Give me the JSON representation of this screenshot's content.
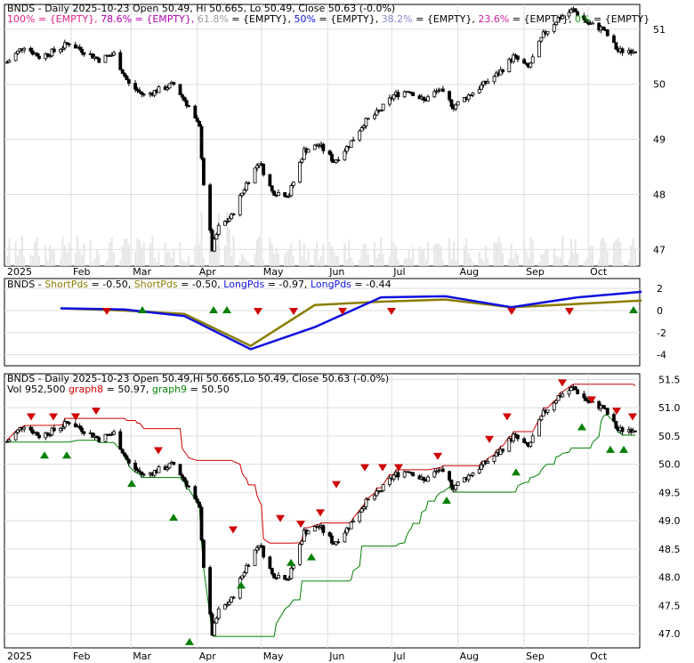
{
  "panel1": {
    "header_parts": [
      {
        "text": "BNDS - Daily 2025-10-23 Open 50.49, Hi 50.665, Lo 50.49, Close 50.63 (-0.0%)",
        "color": "#000000"
      }
    ],
    "fib_parts": [
      {
        "text": "100% = {EMPTY}, ",
        "color": "#e0218a"
      },
      {
        "text": "78.6% = {EMPTY}, ",
        "color": "#b000b0"
      },
      {
        "text": "61.8% ",
        "color": "#9a9a9a"
      },
      {
        "text": "= {EMPTY}, ",
        "color": "#000000"
      },
      {
        "text": "50% ",
        "color": "#1010e0"
      },
      {
        "text": "= {EMPTY}, ",
        "color": "#000000"
      },
      {
        "text": "38.2% ",
        "color": "#8888cc"
      },
      {
        "text": "= {EMPTY}, ",
        "color": "#000000"
      },
      {
        "text": "23.6% ",
        "color": "#d020a0"
      },
      {
        "text": "= {EMPTY}, ",
        "color": "#000000"
      },
      {
        "text": "0% ",
        "color": "#10a010"
      },
      {
        "text": "= {EMPTY}",
        "color": "#000000"
      }
    ],
    "y_ticks": [
      47,
      48,
      49,
      50,
      51
    ],
    "ylim": [
      46.7,
      51.45
    ]
  },
  "panel2": {
    "header_parts": [
      {
        "text": "BNDS - ",
        "color": "#000000"
      },
      {
        "text": "ShortPds",
        "color": "#8b7d00"
      },
      {
        "text": " = -0.50, ",
        "color": "#000000"
      },
      {
        "text": "ShortPds",
        "color": "#8b7d00"
      },
      {
        "text": " = -0.50, ",
        "color": "#000000"
      },
      {
        "text": "LongPds",
        "color": "#1010e0"
      },
      {
        "text": " = -0.97, ",
        "color": "#000000"
      },
      {
        "text": "LongPds",
        "color": "#1010e0"
      },
      {
        "text": " = -0.44",
        "color": "#000000"
      }
    ],
    "y_ticks": [
      2,
      0,
      -2,
      -4
    ],
    "ylim": [
      -5,
      2.9
    ]
  },
  "panel3": {
    "header_parts": [
      {
        "text": "BNDS - Daily 2025-10-23 Open 50.49,Hi 50.665,Lo 50.49, Close 50.63 (-0.0%)",
        "color": "#000000"
      }
    ],
    "header2_parts": [
      {
        "text": "Vol 952,500 ",
        "color": "#000000"
      },
      {
        "text": "graph8",
        "color": "#d00000"
      },
      {
        "text": " = 50.97, ",
        "color": "#000000"
      },
      {
        "text": "graph9",
        "color": "#008000"
      },
      {
        "text": " = 50.50",
        "color": "#000000"
      }
    ],
    "y_ticks": [
      47.0,
      47.5,
      48.0,
      48.5,
      49.0,
      49.5,
      50.0,
      50.5,
      51.0,
      51.5
    ],
    "ylim": [
      46.75,
      51.6
    ]
  },
  "x_axis": {
    "labels": [
      "2025",
      "Feb",
      "Mar",
      "Apr",
      "May",
      "Jun",
      "Jul",
      "Aug",
      "Sep",
      "Oct"
    ]
  },
  "chart_data": [
    {
      "type": "candlestick",
      "title": "BNDS - Daily 2025-10-23 Open 50.49, Hi 50.665, Lo 50.49, Close 50.63 (-0.0%)",
      "x": [
        "2025",
        "Feb",
        "Mar",
        "Apr",
        "May",
        "Jun",
        "Jul",
        "Aug",
        "Sep",
        "Oct"
      ],
      "price_keypoints": [
        [
          "2025-01-02",
          50.4
        ],
        [
          "2025-01-10",
          50.7
        ],
        [
          "2025-01-17",
          50.5
        ],
        [
          "2025-01-24",
          50.6
        ],
        [
          "2025-01-31",
          50.75
        ],
        [
          "2025-02-07",
          50.6
        ],
        [
          "2025-02-14",
          50.45
        ],
        [
          "2025-02-21",
          50.55
        ],
        [
          "2025-02-28",
          50.0
        ],
        [
          "2025-03-07",
          49.8
        ],
        [
          "2025-03-14",
          49.9
        ],
        [
          "2025-03-21",
          50.0
        ],
        [
          "2025-03-28",
          49.6
        ],
        [
          "2025-04-02",
          49.2
        ],
        [
          "2025-04-04",
          48.2
        ],
        [
          "2025-04-08",
          47.0
        ],
        [
          "2025-04-11",
          47.4
        ],
        [
          "2025-04-17",
          47.6
        ],
        [
          "2025-04-24",
          48.2
        ],
        [
          "2025-04-30",
          48.6
        ],
        [
          "2025-05-06",
          48.05
        ],
        [
          "2025-05-14",
          48.0
        ],
        [
          "2025-05-21",
          48.8
        ],
        [
          "2025-05-28",
          48.9
        ],
        [
          "2025-06-04",
          48.6
        ],
        [
          "2025-06-11",
          48.9
        ],
        [
          "2025-06-18",
          49.3
        ],
        [
          "2025-06-25",
          49.5
        ],
        [
          "2025-07-02",
          49.8
        ],
        [
          "2025-07-09",
          49.9
        ],
        [
          "2025-07-16",
          49.7
        ],
        [
          "2025-07-23",
          49.9
        ],
        [
          "2025-07-30",
          49.6
        ],
        [
          "2025-08-06",
          49.8
        ],
        [
          "2025-08-13",
          50.0
        ],
        [
          "2025-08-20",
          50.2
        ],
        [
          "2025-08-27",
          50.5
        ],
        [
          "2025-09-03",
          50.3
        ],
        [
          "2025-09-10",
          50.9
        ],
        [
          "2025-09-17",
          51.2
        ],
        [
          "2025-09-24",
          51.35
        ],
        [
          "2025-10-01",
          51.1
        ],
        [
          "2025-10-08",
          51.0
        ],
        [
          "2025-10-15",
          50.6
        ],
        [
          "2025-10-23",
          50.63
        ]
      ]
    },
    {
      "type": "line",
      "title": "BNDS - ShortPds = -0.50, ShortPds = -0.50, LongPds = -0.97, LongPds = -0.44",
      "series": [
        {
          "name": "ShortPds",
          "color": "#8b7d00",
          "values_at_month_starts": [
            0.2,
            0.0,
            -0.3,
            -3.2,
            0.5,
            0.8,
            1.0,
            0.3,
            0.6,
            0.9
          ]
        },
        {
          "name": "LongPds",
          "color": "#1010e0",
          "values_at_month_starts": [
            0.2,
            0.1,
            -0.5,
            -3.5,
            -1.5,
            1.2,
            1.3,
            0.3,
            1.2,
            1.7
          ]
        }
      ],
      "ylim": [
        -5,
        2.9
      ]
    },
    {
      "type": "line",
      "title": "BNDS - Daily 2025-10-23 Open 50.49,Hi 50.665,Lo 50.49, Close 50.63 (-0.0%)",
      "series": [
        {
          "name": "graph8",
          "color": "#d00000",
          "last": 50.97
        },
        {
          "name": "graph9",
          "color": "#008000",
          "last": 50.5
        }
      ],
      "volume_last": "952,500"
    }
  ]
}
